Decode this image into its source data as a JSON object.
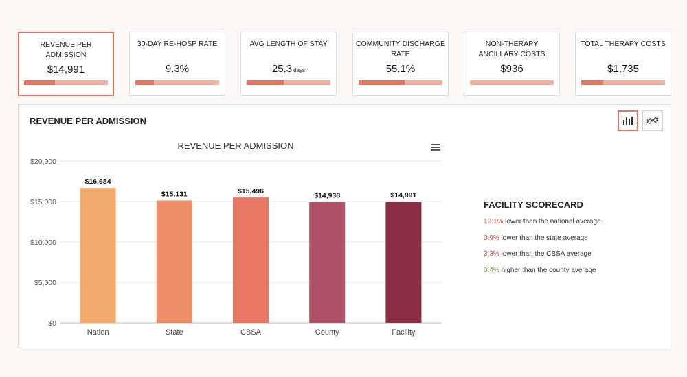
{
  "kpis": [
    {
      "title": "REVENUE PER ADMISSION",
      "value": "$14,991",
      "unit": "",
      "progress": 0.37,
      "active": true
    },
    {
      "title": "30-DAY RE-HOSP RATE",
      "value": "9.3%",
      "unit": "",
      "progress": 0.22,
      "active": false
    },
    {
      "title": "AVG LENGTH OF STAY",
      "value": "25.3",
      "unit": "days",
      "progress": 0.44,
      "active": false
    },
    {
      "title": "COMMUNITY DISCHARGE RATE",
      "value": "55.1%",
      "unit": "",
      "progress": 0.55,
      "active": false
    },
    {
      "title": "NON-THERAPY ANCILLARY COSTS",
      "value": "$936",
      "unit": "",
      "progress": 0.0,
      "active": false
    },
    {
      "title": "TOTAL THERAPY COSTS",
      "value": "$1,735",
      "unit": "",
      "progress": 0.26,
      "active": false
    }
  ],
  "panel": {
    "title": "REVENUE PER ADMISSION",
    "buttons": [
      {
        "icon": "bar-chart-icon",
        "active": true
      },
      {
        "icon": "line-chart-icon",
        "active": false
      }
    ]
  },
  "chart_data": {
    "type": "bar",
    "title": "REVENUE PER ADMISSION",
    "categories": [
      "Nation",
      "State",
      "CBSA",
      "County",
      "Facility"
    ],
    "values": [
      16684,
      15131,
      15496,
      14938,
      14991
    ],
    "data_labels": [
      "$16,684",
      "$15,131",
      "$15,496",
      "$14,938",
      "$14,991"
    ],
    "colors": [
      "#f2ab6d",
      "#ee8e68",
      "#e87764",
      "#b15168",
      "#8b2e41"
    ],
    "ylim": [
      0,
      20000
    ],
    "yticks": [
      0,
      5000,
      10000,
      15000,
      20000
    ],
    "ytick_labels": [
      "$0",
      "$5,000",
      "$10,000",
      "$15,000",
      "$20,000"
    ],
    "xlabel": "",
    "ylabel": "",
    "grid": true
  },
  "scorecard": {
    "title": "FACILITY SCORECARD",
    "items": [
      {
        "pct": "10.1%",
        "text": " lower than the national average",
        "direction": "negative"
      },
      {
        "pct": "0.9%",
        "text": " lower than the state average",
        "direction": "negative"
      },
      {
        "pct": "3.3%",
        "text": " lower than the CBSA average",
        "direction": "negative"
      },
      {
        "pct": "0.4%",
        "text": " higher than the county average",
        "direction": "positive"
      }
    ]
  }
}
